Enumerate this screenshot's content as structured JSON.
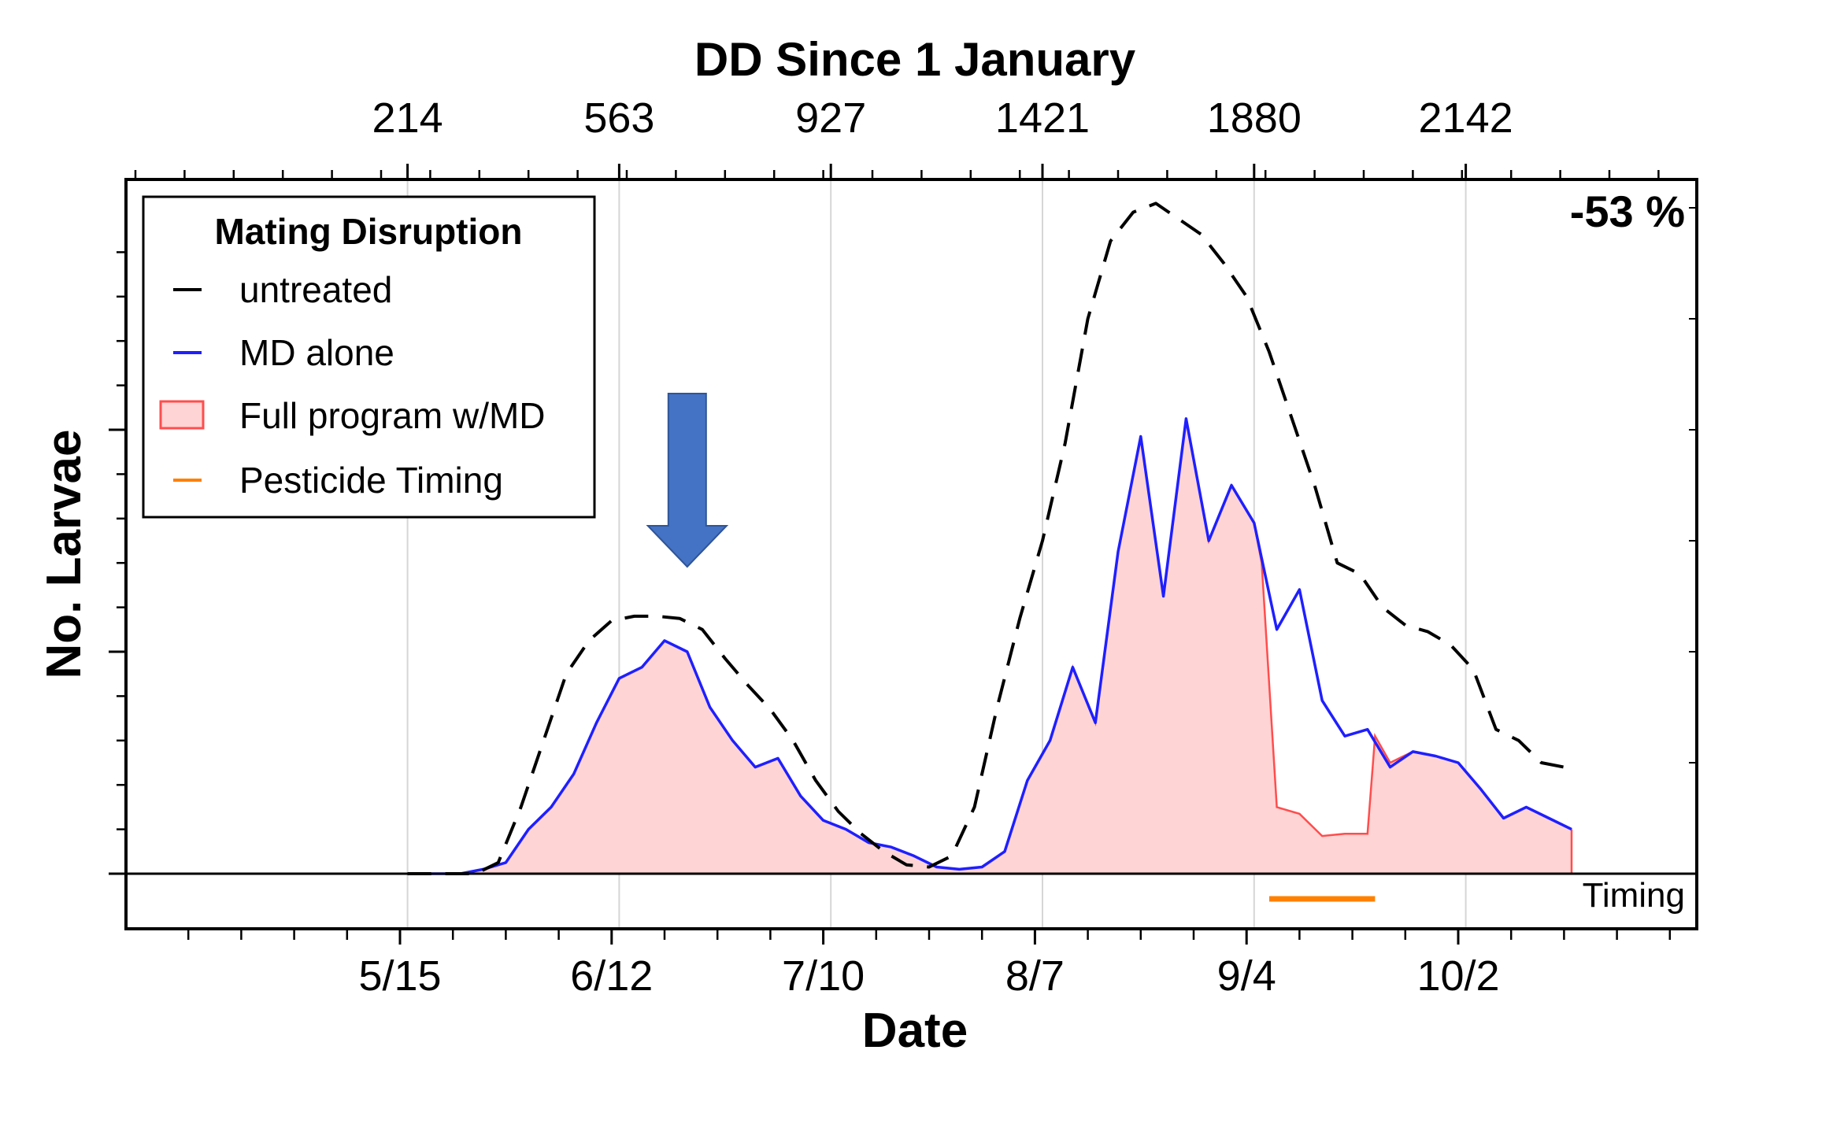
{
  "chart_data": {
    "type": "area",
    "top_axis_title": "DD Since 1 January",
    "top_ticks": [
      {
        "date": "5/16",
        "label": "214"
      },
      {
        "date": "6/13",
        "label": "563"
      },
      {
        "date": "7/11",
        "label": "927"
      },
      {
        "date": "8/8",
        "label": "1421"
      },
      {
        "date": "9/5",
        "label": "1880"
      },
      {
        "date": "10/3",
        "label": "2142"
      }
    ],
    "xlabel": "Date",
    "x_ticks": [
      "5/15",
      "6/12",
      "7/10",
      "8/7",
      "9/4",
      "10/2"
    ],
    "ylabel": "No. Larvae",
    "ylim": [
      0,
      3
    ],
    "y_major_ticks": [
      0,
      1,
      2,
      3
    ],
    "y_tick_labels_shown": false,
    "percent_label": "-53 %",
    "timing_label": "Timing",
    "grid": "vertical",
    "legend": {
      "title": "Mating Disruption",
      "placement": "top-left",
      "entries": [
        {
          "label": "untreated",
          "style": "dashed-line",
          "color": "#000000"
        },
        {
          "label": "MD alone",
          "style": "line",
          "color": "#1f1fff"
        },
        {
          "label": "Full program w/MD",
          "style": "filled-area",
          "color": "#ff4d4d",
          "fill": "#ffd4d4"
        },
        {
          "label": "Pesticide Timing",
          "style": "line",
          "color": "#ff8000"
        }
      ]
    },
    "annotation": {
      "type": "down-arrow",
      "color": "#4472c4",
      "points_to": "6/22"
    },
    "pesticide_timing": {
      "start": "9/7",
      "end": "9/21"
    },
    "series": [
      {
        "name": "untreated",
        "color": "#000000",
        "x": [
          "5/16",
          "5/25",
          "5/28",
          "5/31",
          "6/3",
          "6/6",
          "6/9",
          "6/12",
          "6/15",
          "6/18",
          "6/21",
          "6/24",
          "6/27",
          "6/30",
          "7/3",
          "7/6",
          "7/9",
          "7/12",
          "7/15",
          "7/18",
          "7/21",
          "7/24",
          "7/27",
          "7/30",
          "8/2",
          "8/5",
          "8/8",
          "8/11",
          "8/14",
          "8/17",
          "8/20",
          "8/23",
          "8/26",
          "8/29",
          "9/1",
          "9/4",
          "9/7",
          "9/10",
          "9/13",
          "9/16",
          "9/19",
          "9/22",
          "9/25",
          "9/28",
          "10/1",
          "10/4",
          "10/7",
          "10/10",
          "10/13",
          "10/16"
        ],
        "y": [
          0,
          0,
          0.05,
          0.3,
          0.6,
          0.9,
          1.05,
          1.14,
          1.16,
          1.16,
          1.15,
          1.1,
          0.97,
          0.85,
          0.74,
          0.6,
          0.42,
          0.28,
          0.18,
          0.1,
          0.04,
          0.03,
          0.08,
          0.3,
          0.75,
          1.15,
          1.5,
          1.94,
          2.5,
          2.85,
          2.98,
          3.02,
          2.95,
          2.88,
          2.75,
          2.6,
          2.35,
          2.05,
          1.75,
          1.4,
          1.35,
          1.2,
          1.12,
          1.09,
          1.03,
          0.92,
          0.65,
          0.6,
          0.5,
          0.48
        ]
      },
      {
        "name": "MD alone",
        "color": "#1f1fff",
        "x": [
          "5/16",
          "5/20",
          "5/23",
          "5/26",
          "5/29",
          "6/1",
          "6/4",
          "6/7",
          "6/10",
          "6/13",
          "6/16",
          "6/19",
          "6/22",
          "6/25",
          "6/28",
          "7/1",
          "7/4",
          "7/7",
          "7/10",
          "7/13",
          "7/16",
          "7/19",
          "7/22",
          "7/25",
          "7/28",
          "7/31",
          "8/3",
          "8/6",
          "8/9",
          "8/12",
          "8/15",
          "8/18",
          "8/21",
          "8/24",
          "8/27",
          "8/30",
          "9/2",
          "9/5",
          "9/8",
          "9/11",
          "9/14",
          "9/17",
          "9/20",
          "9/23",
          "9/26",
          "9/29",
          "10/2",
          "10/5",
          "10/8",
          "10/11",
          "10/14",
          "10/17"
        ],
        "y": [
          0,
          0,
          0,
          0.02,
          0.05,
          0.2,
          0.3,
          0.45,
          0.68,
          0.88,
          0.93,
          1.05,
          1.0,
          0.75,
          0.6,
          0.48,
          0.52,
          0.35,
          0.24,
          0.2,
          0.14,
          0.12,
          0.08,
          0.03,
          0.02,
          0.03,
          0.1,
          0.42,
          0.6,
          0.93,
          0.68,
          1.45,
          1.97,
          1.25,
          2.05,
          1.5,
          1.75,
          1.58,
          1.1,
          1.28,
          0.78,
          0.62,
          0.65,
          0.48,
          0.55,
          0.53,
          0.5,
          0.38,
          0.25,
          0.3,
          0.25,
          0.2
        ]
      },
      {
        "name": "Full program w/MD",
        "color": "#ff4d4d",
        "fill": "#ffd4d4",
        "x": [
          "5/16",
          "5/20",
          "5/23",
          "5/26",
          "5/29",
          "6/1",
          "6/4",
          "6/7",
          "6/10",
          "6/13",
          "6/16",
          "6/19",
          "6/22",
          "6/25",
          "6/28",
          "7/1",
          "7/4",
          "7/7",
          "7/10",
          "7/13",
          "7/16",
          "7/19",
          "7/22",
          "7/25",
          "7/28",
          "7/31",
          "8/3",
          "8/6",
          "8/9",
          "8/12",
          "8/15",
          "8/18",
          "8/21",
          "8/24",
          "8/27",
          "8/30",
          "9/2",
          "9/5",
          "9/6",
          "9/8",
          "9/11",
          "9/14",
          "9/17",
          "9/20",
          "9/21",
          "9/23",
          "9/26",
          "9/29",
          "10/2",
          "10/5",
          "10/8",
          "10/11",
          "10/14",
          "10/17"
        ],
        "y": [
          0,
          0,
          0,
          0.02,
          0.05,
          0.2,
          0.3,
          0.45,
          0.68,
          0.88,
          0.93,
          1.05,
          1.0,
          0.75,
          0.6,
          0.48,
          0.52,
          0.35,
          0.24,
          0.2,
          0.14,
          0.12,
          0.08,
          0.03,
          0.02,
          0.03,
          0.1,
          0.42,
          0.6,
          0.93,
          0.68,
          1.45,
          1.97,
          1.25,
          2.05,
          1.5,
          1.75,
          1.58,
          1.4,
          0.3,
          0.27,
          0.17,
          0.18,
          0.18,
          0.62,
          0.5,
          0.55,
          0.53,
          0.5,
          0.38,
          0.25,
          0.3,
          0.25,
          0.2
        ]
      }
    ]
  }
}
